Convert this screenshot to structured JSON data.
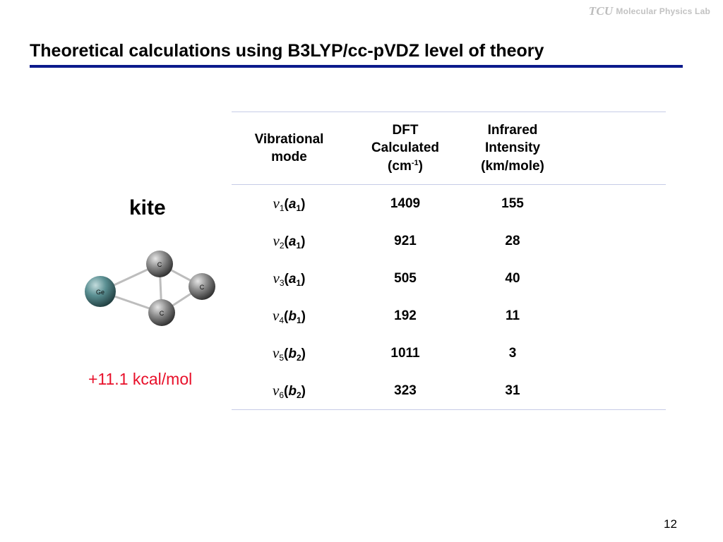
{
  "header": {
    "logo_mark": "TCU",
    "logo_text": "Molecular Physics Lab"
  },
  "slide": {
    "title": "Theoretical calculations using B3LYP/cc-pVDZ level of theory",
    "page_number": "12"
  },
  "molecule": {
    "name": "kite",
    "energy": "+11.1 kcal/mol",
    "atoms": [
      {
        "label": "Ge",
        "color": "#5a8f92"
      },
      {
        "label": "C",
        "color": "#8c8c8c"
      },
      {
        "label": "C",
        "color": "#8c8c8c"
      },
      {
        "label": "C",
        "color": "#8c8c8c"
      }
    ]
  },
  "table": {
    "headers": {
      "mode": [
        "Vibrational",
        "mode"
      ],
      "dft": {
        "line1": "DFT",
        "line2": "Calculated",
        "line3_pre": "(cm",
        "line3_sup": "-1",
        "line3_post": ")"
      },
      "ir": [
        "Infrared",
        "Intensity",
        "(km/mole)"
      ]
    },
    "rows": [
      {
        "nu": "ν",
        "index": "1",
        "symmetry": "a",
        "sym_index": "1",
        "dft": "1409",
        "ir": "155"
      },
      {
        "nu": "ν",
        "index": "2",
        "symmetry": "a",
        "sym_index": "1",
        "dft": "921",
        "ir": "28"
      },
      {
        "nu": "ν",
        "index": "3",
        "symmetry": "a",
        "sym_index": "1",
        "dft": "505",
        "ir": "40"
      },
      {
        "nu": "ν",
        "index": "4",
        "symmetry": "b",
        "sym_index": "1",
        "dft": "192",
        "ir": "11"
      },
      {
        "nu": "ν",
        "index": "5",
        "symmetry": "b",
        "sym_index": "2",
        "dft": "1011",
        "ir": "3"
      },
      {
        "nu": "ν",
        "index": "6",
        "symmetry": "b",
        "sym_index": "2",
        "dft": "323",
        "ir": "31"
      }
    ]
  },
  "colors": {
    "title_rule": "#0c1a8c",
    "energy": "#e8102a",
    "table_rule": "#c6cce6"
  }
}
